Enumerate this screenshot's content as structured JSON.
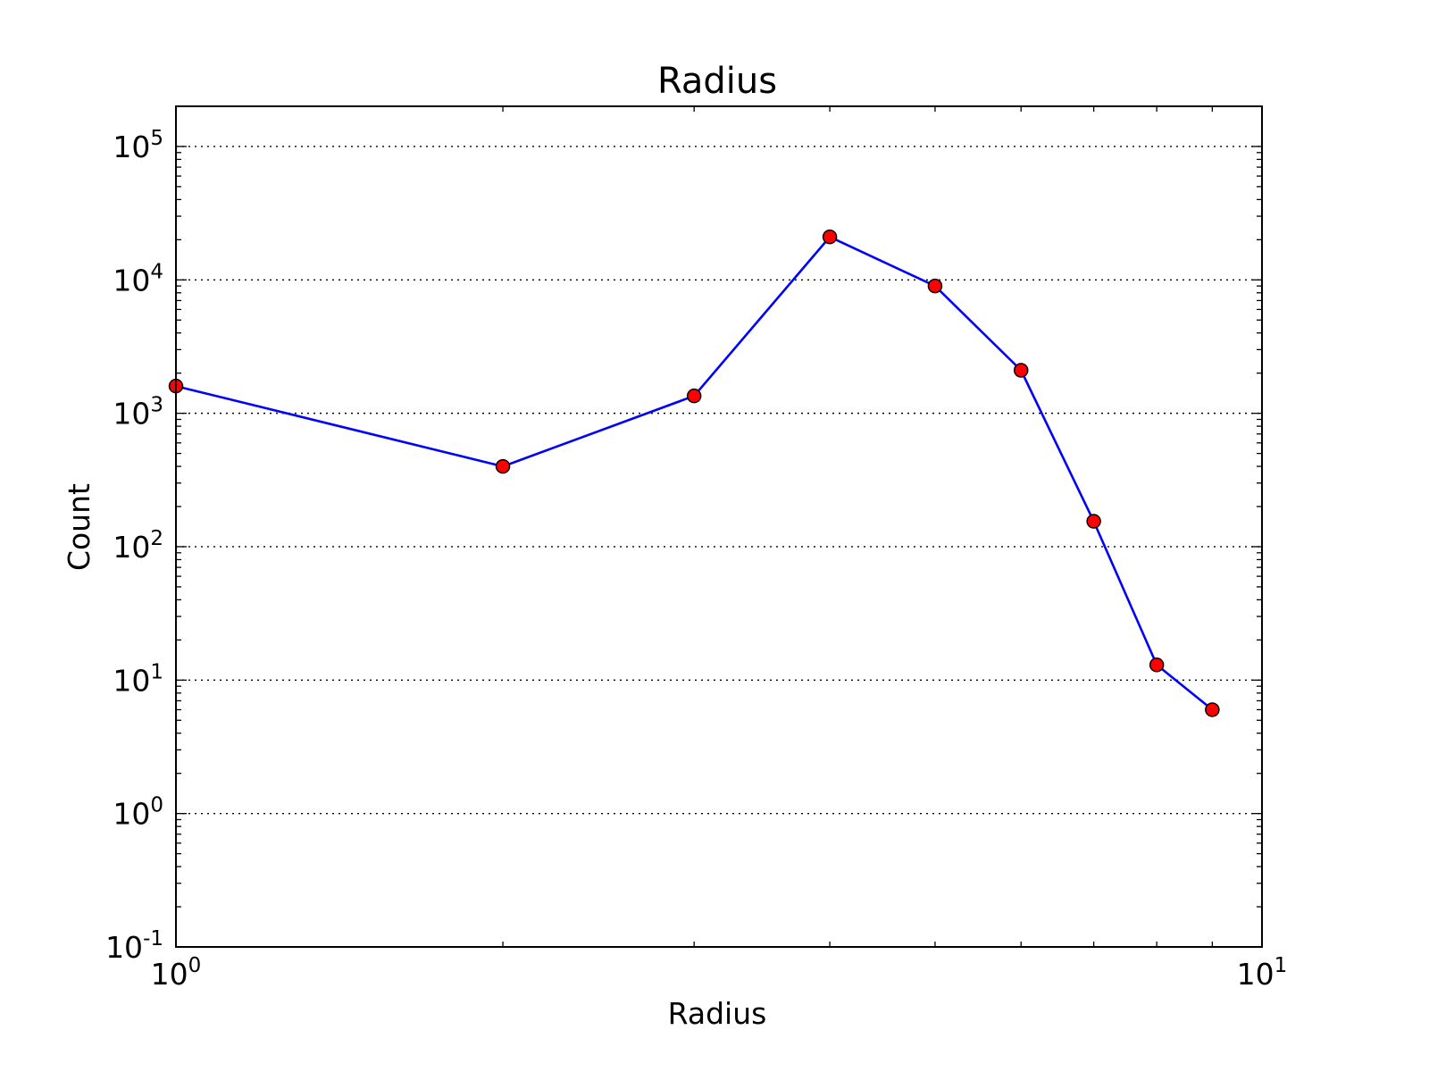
{
  "chart_data": {
    "type": "line",
    "title": "Radius",
    "xlabel": "Radius",
    "ylabel": "Count",
    "xscale": "log",
    "yscale": "log",
    "xlim": [
      1,
      10
    ],
    "ylim": [
      0.1,
      200000
    ],
    "grid": "horizontal dotted",
    "x_ticks": [
      {
        "value": 1,
        "base": "10",
        "exp": "0"
      },
      {
        "value": 10,
        "base": "10",
        "exp": "1"
      }
    ],
    "y_ticks": [
      {
        "value": 0.1,
        "base": "10",
        "exp": "-1"
      },
      {
        "value": 1,
        "base": "10",
        "exp": "0"
      },
      {
        "value": 10,
        "base": "10",
        "exp": "1"
      },
      {
        "value": 100,
        "base": "10",
        "exp": "2"
      },
      {
        "value": 1000,
        "base": "10",
        "exp": "3"
      },
      {
        "value": 10000,
        "base": "10",
        "exp": "4"
      },
      {
        "value": 100000,
        "base": "10",
        "exp": "5"
      }
    ],
    "series": [
      {
        "x": [
          1,
          2,
          3,
          4,
          5,
          6,
          7,
          8,
          9
        ],
        "y": [
          1600,
          400,
          1350,
          21000,
          9000,
          2100,
          155,
          13,
          6
        ],
        "line_color": "#0000ff",
        "marker_color": "#ff0000"
      }
    ]
  }
}
